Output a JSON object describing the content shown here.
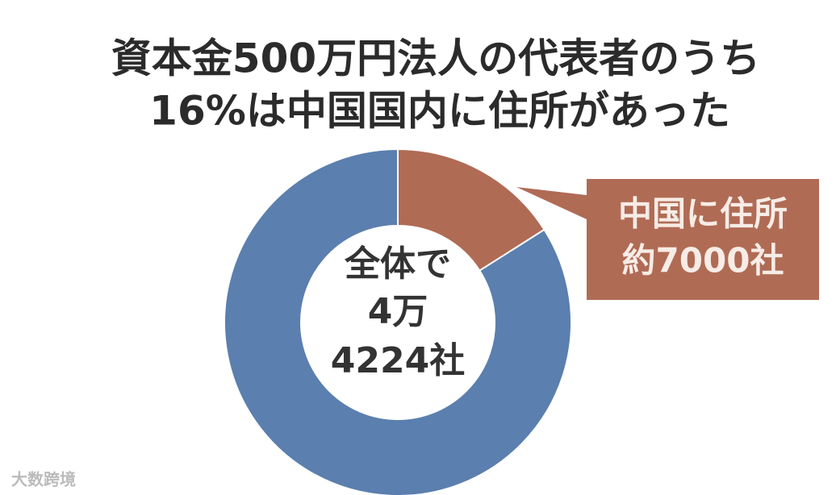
{
  "chart_data": {
    "type": "donut",
    "title": [
      "資本金500万円法人の代表者のうち",
      "16%は中国国内に住所があった"
    ],
    "values": [
      16,
      84
    ],
    "colors": [
      "#b06b55",
      "#5b7fae"
    ],
    "center_label": [
      "全体で",
      "4万",
      "4224社"
    ],
    "annotation": [
      "中国に住所",
      "約7000社"
    ],
    "annotation_color": "#b06b55",
    "watermark": "大数跨境"
  }
}
